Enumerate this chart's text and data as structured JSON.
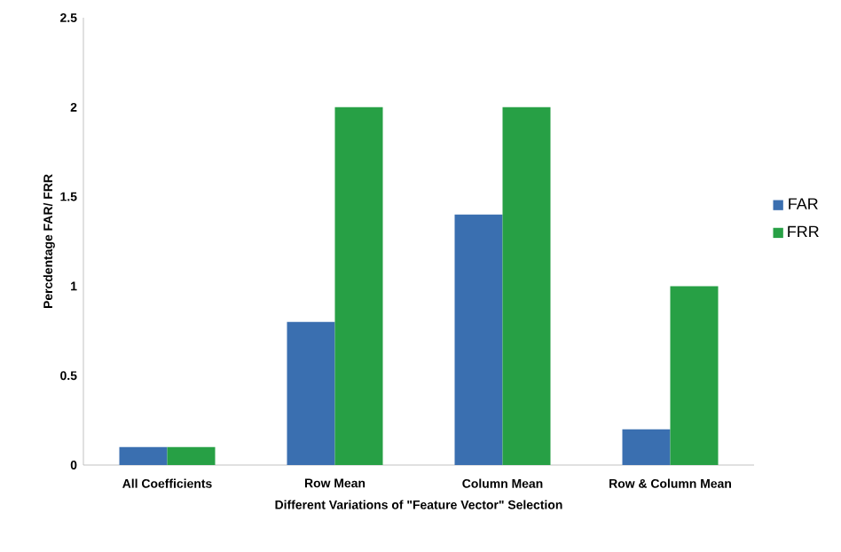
{
  "chart_data": {
    "type": "bar",
    "xlabel": "Different Variations of \"Feature Vector\" Selection",
    "ylabel": "Percdentage FAR/ FRR",
    "categories": [
      "All Coefficients",
      "Row Mean",
      "Column Mean",
      "Row & Column Mean"
    ],
    "series": [
      {
        "name": "FAR",
        "color": "#3a6fb0",
        "values": [
          0.1,
          0.8,
          1.4,
          0.2
        ]
      },
      {
        "name": "FRR",
        "color": "#27a045",
        "values": [
          0.1,
          2,
          2,
          1
        ]
      }
    ],
    "ylim": [
      0,
      2.5
    ],
    "yticks": [
      0,
      0.5,
      1,
      1.5,
      2,
      2.5
    ],
    "grid": false,
    "legend": "right"
  }
}
